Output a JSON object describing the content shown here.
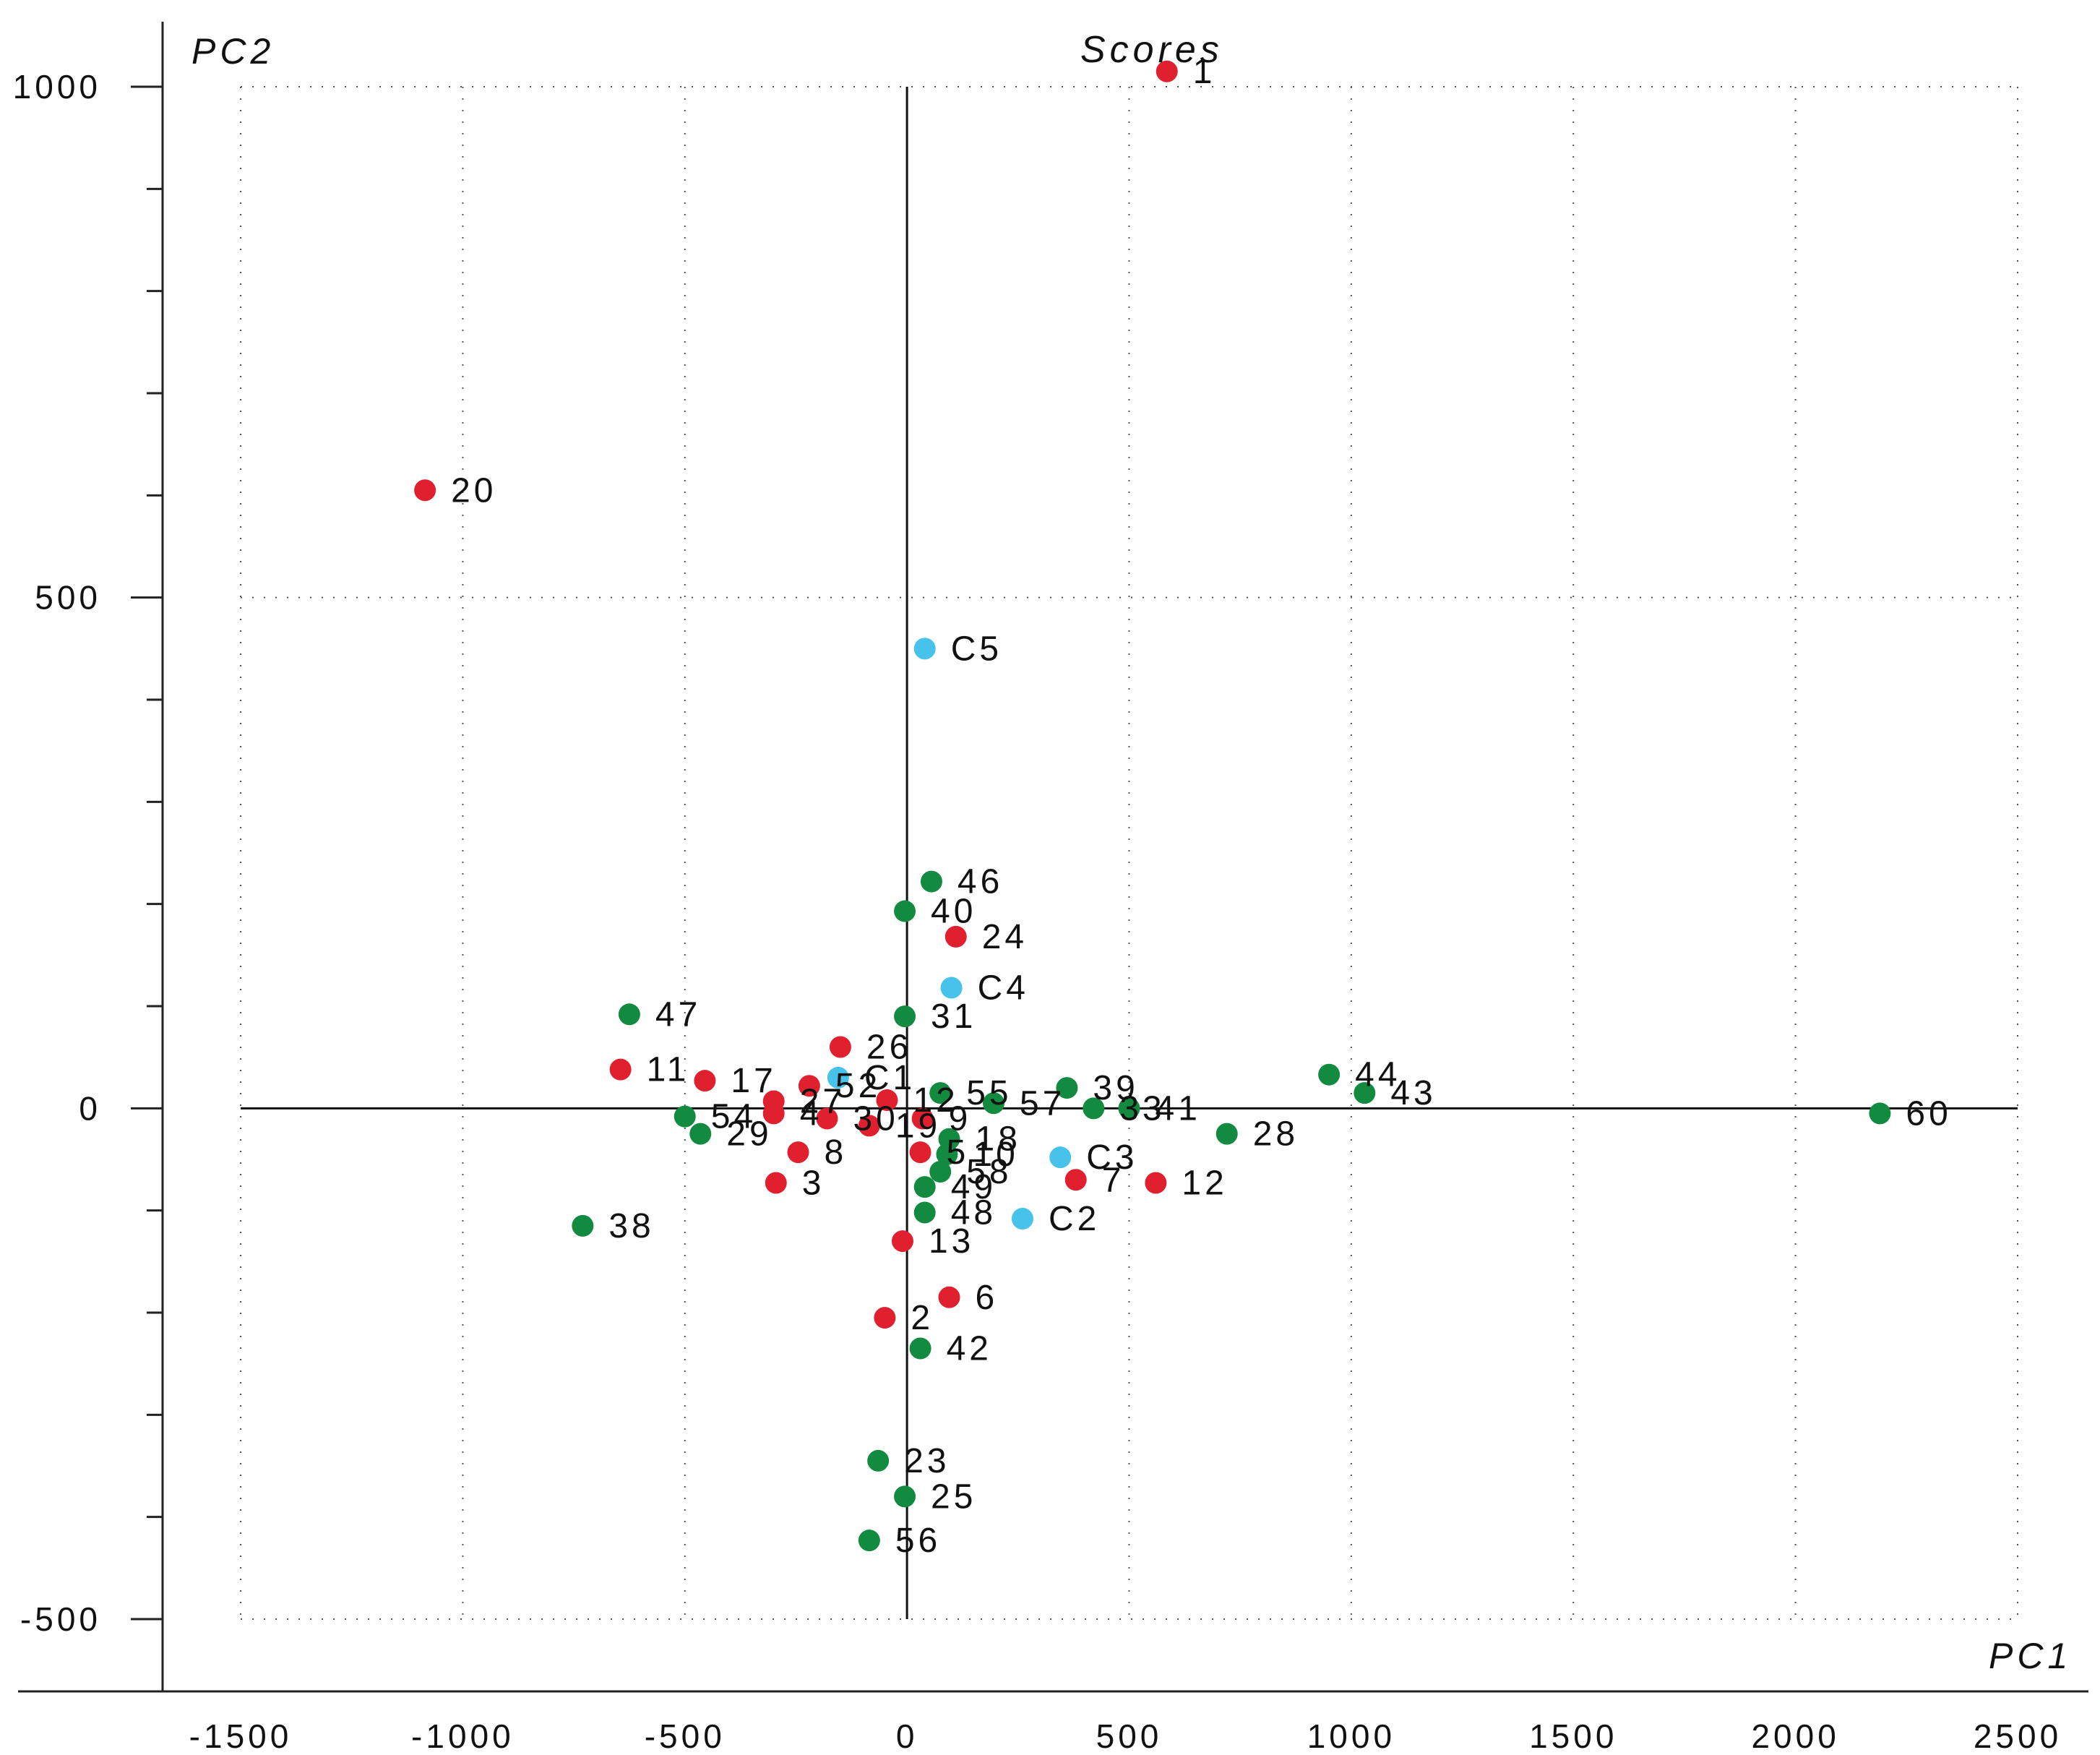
{
  "chart_data": {
    "type": "scatter",
    "title": "Scores",
    "xlabel": "PC1",
    "ylabel": "PC2",
    "xlim": [
      -1500,
      2500
    ],
    "ylim": [
      -500,
      1000
    ],
    "xticks": [
      -1500,
      -1000,
      -500,
      0,
      500,
      1000,
      1500,
      2000,
      2500
    ],
    "yticks": [
      -500,
      0,
      500,
      1000
    ],
    "grid": true,
    "colors": {
      "red": "#e0202f",
      "green": "#128a3f",
      "cyan": "#47c3eb"
    },
    "points": [
      {
        "label": "1",
        "x": 585,
        "y": 1015,
        "group": "red"
      },
      {
        "label": "20",
        "x": -1085,
        "y": 605,
        "group": "red"
      },
      {
        "label": "C5",
        "x": 40,
        "y": 450,
        "group": "cyan"
      },
      {
        "label": "46",
        "x": 55,
        "y": 222,
        "group": "green"
      },
      {
        "label": "40",
        "x": -5,
        "y": 193,
        "group": "green"
      },
      {
        "label": "24",
        "x": 110,
        "y": 168,
        "group": "red"
      },
      {
        "label": "C4",
        "x": 100,
        "y": 118,
        "group": "cyan"
      },
      {
        "label": "31",
        "x": -5,
        "y": 90,
        "group": "green"
      },
      {
        "label": "47",
        "x": -625,
        "y": 92,
        "group": "green"
      },
      {
        "label": "26",
        "x": -150,
        "y": 60,
        "group": "red"
      },
      {
        "label": "11",
        "x": -645,
        "y": 38,
        "group": "red"
      },
      {
        "label": "17",
        "x": -455,
        "y": 27,
        "group": "red"
      },
      {
        "label": "C1",
        "x": -155,
        "y": 30,
        "group": "cyan"
      },
      {
        "label": "55",
        "x": 75,
        "y": 15,
        "group": "green"
      },
      {
        "label": "52",
        "x": -220,
        "y": 22,
        "group": "red"
      },
      {
        "label": "27",
        "x": -300,
        "y": 7,
        "group": "red"
      },
      {
        "label": "12",
        "x": -45,
        "y": 8,
        "group": "red"
      },
      {
        "label": "39",
        "x": 360,
        "y": 20,
        "group": "green"
      },
      {
        "label": "57",
        "x": 195,
        "y": 5,
        "group": "green"
      },
      {
        "label": "33",
        "x": 420,
        "y": 0,
        "group": "green"
      },
      {
        "label": "41",
        "x": 500,
        "y": 0,
        "group": "green"
      },
      {
        "label": "44",
        "x": 950,
        "y": 33,
        "group": "green"
      },
      {
        "label": "43",
        "x": 1030,
        "y": 15,
        "group": "green"
      },
      {
        "label": "60",
        "x": 2190,
        "y": -5,
        "group": "green"
      },
      {
        "label": "28",
        "x": 720,
        "y": -25,
        "group": "green"
      },
      {
        "label": "54",
        "x": -500,
        "y": -8,
        "group": "green"
      },
      {
        "label": "29",
        "x": -465,
        "y": -25,
        "group": "green"
      },
      {
        "label": "4",
        "x": -300,
        "y": -5,
        "group": "red"
      },
      {
        "label": "30",
        "x": -180,
        "y": -10,
        "group": "red"
      },
      {
        "label": "19",
        "x": -85,
        "y": -17,
        "group": "red"
      },
      {
        "label": "9",
        "x": 35,
        "y": -10,
        "group": "red"
      },
      {
        "label": "18",
        "x": 95,
        "y": -30,
        "group": "green"
      },
      {
        "label": "10",
        "x": 90,
        "y": -45,
        "group": "green"
      },
      {
        "label": "5",
        "x": 30,
        "y": -43,
        "group": "red"
      },
      {
        "label": "8",
        "x": -245,
        "y": -43,
        "group": "red"
      },
      {
        "label": "3",
        "x": -295,
        "y": -73,
        "group": "red"
      },
      {
        "label": "58",
        "x": 75,
        "y": -62,
        "group": "green"
      },
      {
        "label": "C3",
        "x": 345,
        "y": -48,
        "group": "cyan"
      },
      {
        "label": "7",
        "x": 380,
        "y": -70,
        "group": "red"
      },
      {
        "label": "12",
        "x": 560,
        "y": -73,
        "group": "red"
      },
      {
        "label": "49",
        "x": 40,
        "y": -77,
        "group": "green"
      },
      {
        "label": "48",
        "x": 40,
        "y": -102,
        "group": "green"
      },
      {
        "label": "C2",
        "x": 260,
        "y": -108,
        "group": "cyan"
      },
      {
        "label": "38",
        "x": -730,
        "y": -115,
        "group": "green"
      },
      {
        "label": "13",
        "x": -10,
        "y": -130,
        "group": "red"
      },
      {
        "label": "6",
        "x": 95,
        "y": -185,
        "group": "red"
      },
      {
        "label": "2",
        "x": -50,
        "y": -205,
        "group": "red"
      },
      {
        "label": "42",
        "x": 30,
        "y": -235,
        "group": "green"
      },
      {
        "label": "23",
        "x": -65,
        "y": -345,
        "group": "green"
      },
      {
        "label": "25",
        "x": -5,
        "y": -380,
        "group": "green"
      },
      {
        "label": "56",
        "x": -85,
        "y": -423,
        "group": "green"
      }
    ]
  }
}
